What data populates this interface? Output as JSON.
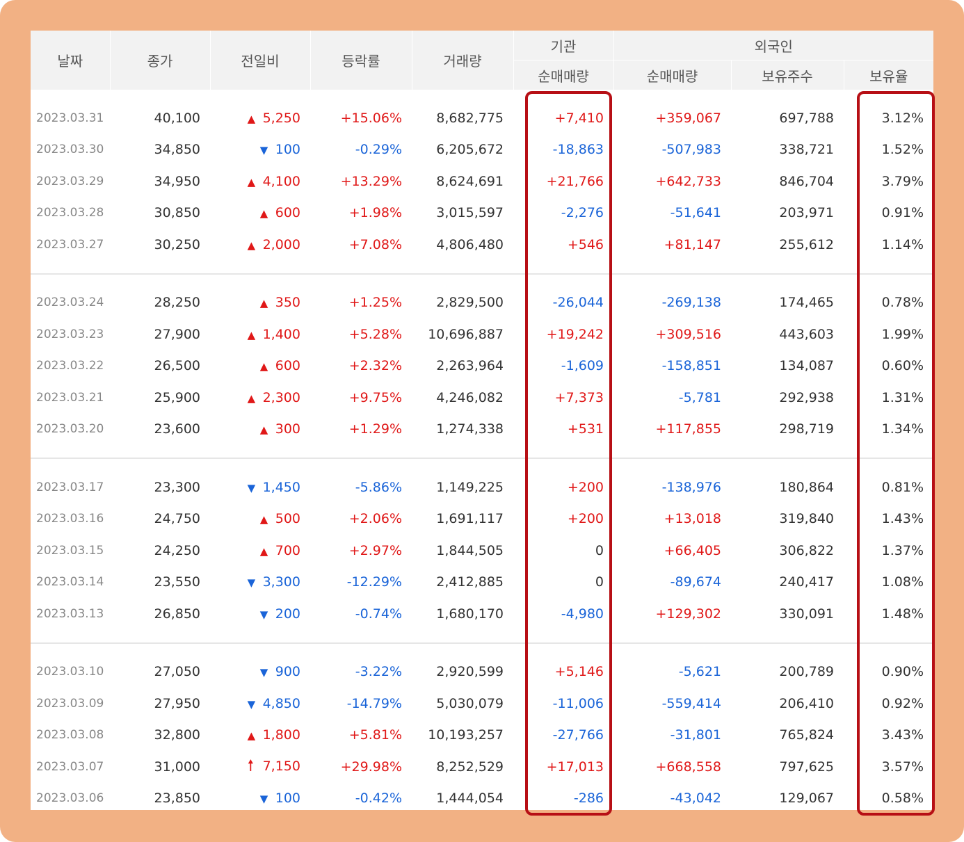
{
  "headers": {
    "date": "날짜",
    "close": "종가",
    "change": "전일비",
    "rate": "등락률",
    "volume": "거래량",
    "institution": "기관",
    "foreign": "외국인",
    "inst_net": "순매매량",
    "foreign_net": "순매매량",
    "foreign_holdings": "보유주수",
    "foreign_ratio": "보유율"
  },
  "groups": [
    [
      {
        "date": "2023.03.31",
        "close": "40,100",
        "dir": "up",
        "change": "5,250",
        "rate": "+15.06%",
        "volume": "8,682,775",
        "inst": "+7,410",
        "fnet": "+359,067",
        "hold": "697,788",
        "ratio": "3.12%"
      },
      {
        "date": "2023.03.30",
        "close": "34,850",
        "dir": "down",
        "change": "100",
        "rate": "-0.29%",
        "volume": "6,205,672",
        "inst": "-18,863",
        "fnet": "-507,983",
        "hold": "338,721",
        "ratio": "1.52%"
      },
      {
        "date": "2023.03.29",
        "close": "34,950",
        "dir": "up",
        "change": "4,100",
        "rate": "+13.29%",
        "volume": "8,624,691",
        "inst": "+21,766",
        "fnet": "+642,733",
        "hold": "846,704",
        "ratio": "3.79%"
      },
      {
        "date": "2023.03.28",
        "close": "30,850",
        "dir": "up",
        "change": "600",
        "rate": "+1.98%",
        "volume": "3,015,597",
        "inst": "-2,276",
        "fnet": "-51,641",
        "hold": "203,971",
        "ratio": "0.91%"
      },
      {
        "date": "2023.03.27",
        "close": "30,250",
        "dir": "up",
        "change": "2,000",
        "rate": "+7.08%",
        "volume": "4,806,480",
        "inst": "+546",
        "fnet": "+81,147",
        "hold": "255,612",
        "ratio": "1.14%"
      }
    ],
    [
      {
        "date": "2023.03.24",
        "close": "28,250",
        "dir": "up",
        "change": "350",
        "rate": "+1.25%",
        "volume": "2,829,500",
        "inst": "-26,044",
        "fnet": "-269,138",
        "hold": "174,465",
        "ratio": "0.78%"
      },
      {
        "date": "2023.03.23",
        "close": "27,900",
        "dir": "up",
        "change": "1,400",
        "rate": "+5.28%",
        "volume": "10,696,887",
        "inst": "+19,242",
        "fnet": "+309,516",
        "hold": "443,603",
        "ratio": "1.99%"
      },
      {
        "date": "2023.03.22",
        "close": "26,500",
        "dir": "up",
        "change": "600",
        "rate": "+2.32%",
        "volume": "2,263,964",
        "inst": "-1,609",
        "fnet": "-158,851",
        "hold": "134,087",
        "ratio": "0.60%"
      },
      {
        "date": "2023.03.21",
        "close": "25,900",
        "dir": "up",
        "change": "2,300",
        "rate": "+9.75%",
        "volume": "4,246,082",
        "inst": "+7,373",
        "fnet": "-5,781",
        "hold": "292,938",
        "ratio": "1.31%"
      },
      {
        "date": "2023.03.20",
        "close": "23,600",
        "dir": "up",
        "change": "300",
        "rate": "+1.29%",
        "volume": "1,274,338",
        "inst": "+531",
        "fnet": "+117,855",
        "hold": "298,719",
        "ratio": "1.34%"
      }
    ],
    [
      {
        "date": "2023.03.17",
        "close": "23,300",
        "dir": "down",
        "change": "1,450",
        "rate": "-5.86%",
        "volume": "1,149,225",
        "inst": "+200",
        "fnet": "-138,976",
        "hold": "180,864",
        "ratio": "0.81%"
      },
      {
        "date": "2023.03.16",
        "close": "24,750",
        "dir": "up",
        "change": "500",
        "rate": "+2.06%",
        "volume": "1,691,117",
        "inst": "+200",
        "fnet": "+13,018",
        "hold": "319,840",
        "ratio": "1.43%"
      },
      {
        "date": "2023.03.15",
        "close": "24,250",
        "dir": "up",
        "change": "700",
        "rate": "+2.97%",
        "volume": "1,844,505",
        "inst": "0",
        "fnet": "+66,405",
        "hold": "306,822",
        "ratio": "1.37%"
      },
      {
        "date": "2023.03.14",
        "close": "23,550",
        "dir": "down",
        "change": "3,300",
        "rate": "-12.29%",
        "volume": "2,412,885",
        "inst": "0",
        "fnet": "-89,674",
        "hold": "240,417",
        "ratio": "1.08%"
      },
      {
        "date": "2023.03.13",
        "close": "26,850",
        "dir": "down",
        "change": "200",
        "rate": "-0.74%",
        "volume": "1,680,170",
        "inst": "-4,980",
        "fnet": "+129,302",
        "hold": "330,091",
        "ratio": "1.48%"
      }
    ],
    [
      {
        "date": "2023.03.10",
        "close": "27,050",
        "dir": "down",
        "change": "900",
        "rate": "-3.22%",
        "volume": "2,920,599",
        "inst": "+5,146",
        "fnet": "-5,621",
        "hold": "200,789",
        "ratio": "0.90%"
      },
      {
        "date": "2023.03.09",
        "close": "27,950",
        "dir": "down",
        "change": "4,850",
        "rate": "-14.79%",
        "volume": "5,030,079",
        "inst": "-11,006",
        "fnet": "-559,414",
        "hold": "206,410",
        "ratio": "0.92%"
      },
      {
        "date": "2023.03.08",
        "close": "32,800",
        "dir": "up",
        "change": "1,800",
        "rate": "+5.81%",
        "volume": "10,193,257",
        "inst": "-27,766",
        "fnet": "-31,801",
        "hold": "765,824",
        "ratio": "3.43%"
      },
      {
        "date": "2023.03.07",
        "close": "31,000",
        "dir": "upper",
        "change": "7,150",
        "rate": "+29.98%",
        "volume": "8,252,529",
        "inst": "+17,013",
        "fnet": "+668,558",
        "hold": "797,625",
        "ratio": "3.57%"
      },
      {
        "date": "2023.03.06",
        "close": "23,850",
        "dir": "down",
        "change": "100",
        "rate": "-0.42%",
        "volume": "1,444,054",
        "inst": "-286",
        "fnet": "-43,042",
        "hold": "129,067",
        "ratio": "0.58%"
      }
    ]
  ],
  "icons": {
    "up": "triangle-up-icon",
    "down": "triangle-down-icon",
    "upper": "arrow-up-icon"
  },
  "colors": {
    "up": "#e01818",
    "down": "#1a64d8",
    "frame": "#f2b184",
    "highlight": "#b70f15"
  }
}
